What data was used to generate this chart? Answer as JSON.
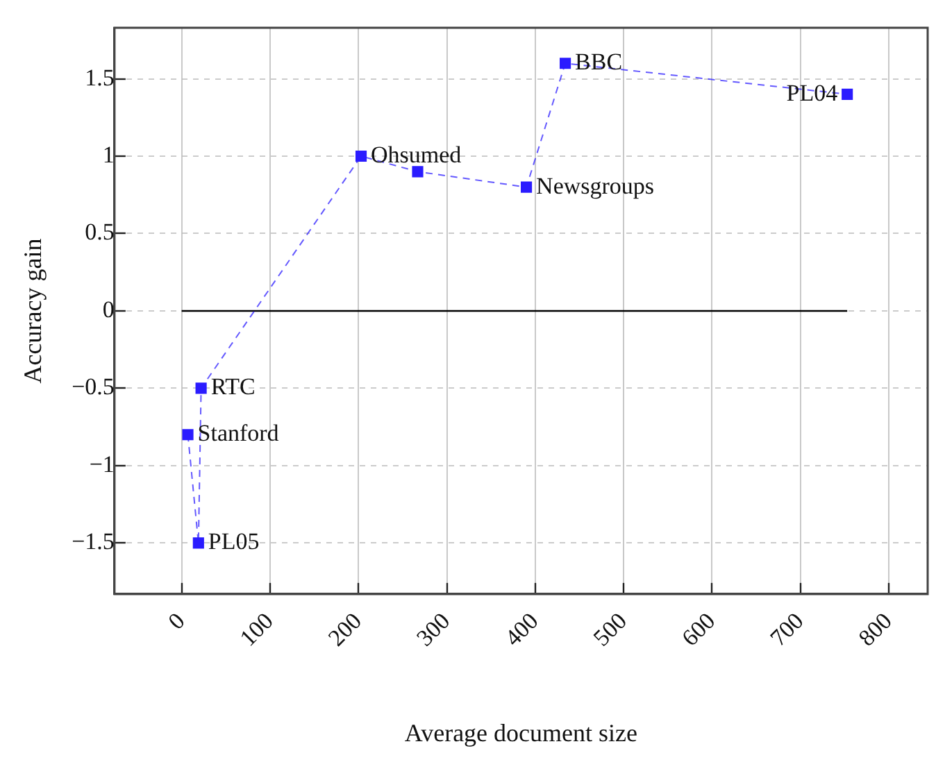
{
  "chart_data": {
    "type": "scatter",
    "xlabel": "Average document size",
    "ylabel": "Accuracy gain",
    "xlim": [
      -76,
      844
    ],
    "xticks": [
      0,
      100,
      200,
      300,
      400,
      500,
      600,
      700,
      800
    ],
    "ylim": [
      -1.83,
      1.83
    ],
    "yticks": [
      {
        "value": -1.5,
        "label": "−1.5"
      },
      {
        "value": -1,
        "label": "−1"
      },
      {
        "value": -0.5,
        "label": "−0.5"
      },
      0,
      0.5,
      1,
      1.5
    ],
    "series": [
      {
        "color": "#2b1cff",
        "x": [
          7,
          19,
          22,
          203,
          267,
          390,
          434,
          753
        ],
        "values": [
          -0.8,
          -1.5,
          -0.5,
          1.0,
          0.9,
          0.8,
          1.6,
          1.4
        ]
      }
    ],
    "marker": "square",
    "line_style": "dashed",
    "grid": true,
    "legend": false,
    "ref_lines": [
      {
        "axis": "y",
        "value": 0,
        "color": "#000000",
        "line_style": "solid"
      }
    ],
    "annotations": [
      {
        "text": "Stanford",
        "x": 7,
        "y": -0.8
      },
      {
        "text": "PL05",
        "x": 19,
        "y": -1.5
      },
      {
        "text": "RTC",
        "x": 22,
        "y": -0.5
      },
      {
        "text": "Ohsumed",
        "x": 203,
        "y": 1.0
      },
      {
        "text": "Newsgroups",
        "x": 390,
        "y": 0.8
      },
      {
        "text": "BBC",
        "x": 434,
        "y": 1.6
      },
      {
        "text": "PL04",
        "x": 753,
        "y": 1.4
      }
    ]
  }
}
